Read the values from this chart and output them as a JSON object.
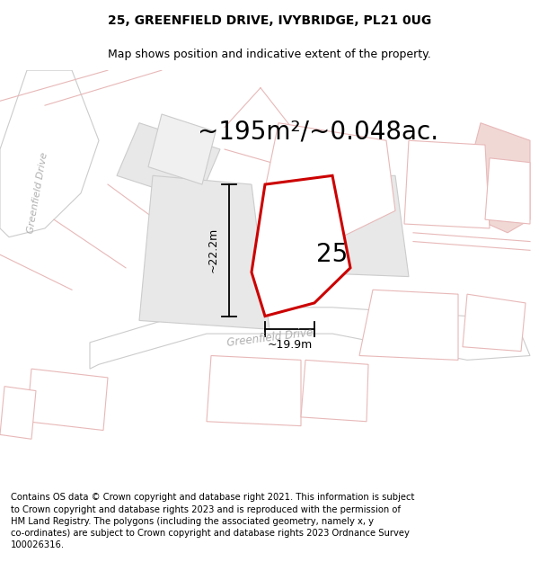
{
  "title_line1": "25, GREENFIELD DRIVE, IVYBRIDGE, PL21 0UG",
  "title_line2": "Map shows position and indicative extent of the property.",
  "area_text": "~195m²/~0.048ac.",
  "label_25": "25",
  "dim_vertical": "~22.2m",
  "dim_horizontal": "~19.9m",
  "road_label_bottom": "Greenfield Drive",
  "road_label_left": "Greenfield Drive",
  "footer_text": "Contains OS data © Crown copyright and database right 2021. This information is subject\nto Crown copyright and database rights 2023 and is reproduced with the permission of\nHM Land Registry. The polygons (including the associated geometry, namely x, y\nco-ordinates) are subject to Crown copyright and database rights 2023 Ordnance Survey\n100026316.",
  "bg_color": "#ffffff",
  "map_bg": "#ffffff",
  "property_fill": "#ffffff",
  "property_outline": "#cc0000",
  "neighbor_fill": "#e8e8e8",
  "neighbor_outline": "#e0a0a0",
  "road_outline": "#e8b8b8",
  "dim_color": "#000000",
  "text_color": "#000000",
  "road_text_color": "#b0b0b0",
  "title_fontsize": 10,
  "subtitle_fontsize": 9,
  "area_fontsize": 20,
  "footer_fontsize": 7.2,
  "label_fontsize": 20,
  "dim_fontsize": 9
}
